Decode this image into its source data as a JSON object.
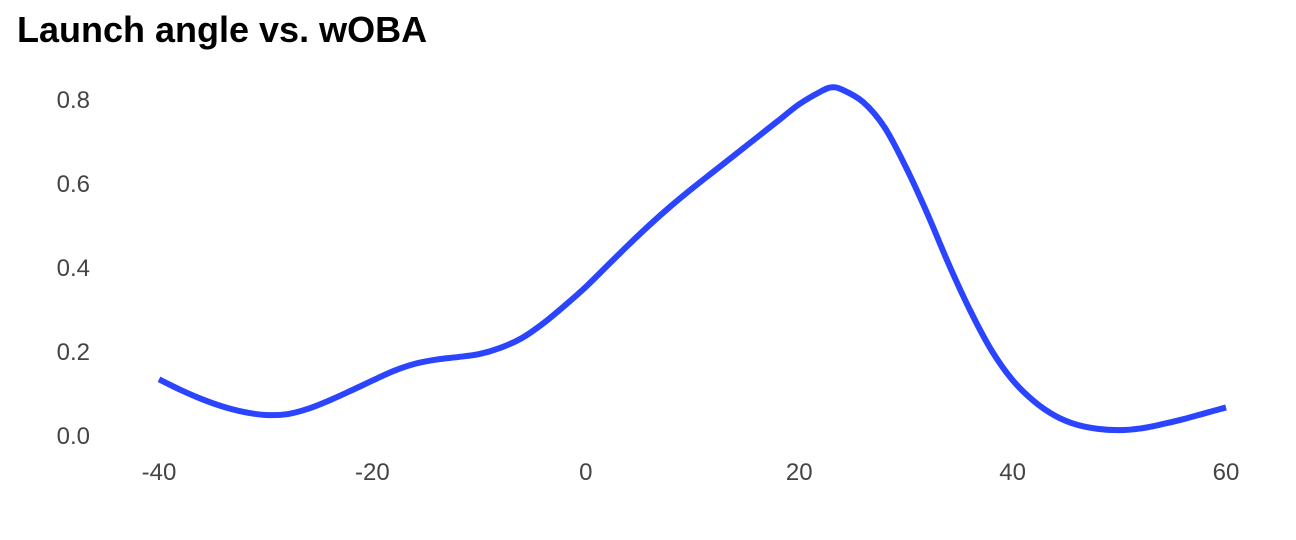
{
  "chart_data": {
    "type": "line",
    "title": "Launch angle vs. wOBA",
    "xlabel": "",
    "ylabel": "",
    "xlim": [
      -40,
      60
    ],
    "ylim": [
      0,
      0.8
    ],
    "x_ticks": [
      "-40",
      "-20",
      "0",
      "20",
      "40",
      "60"
    ],
    "y_ticks": [
      "0.0",
      "0.2",
      "0.4",
      "0.6",
      "0.8"
    ],
    "grid": false,
    "colors": {
      "line": "#2a44ff",
      "tick_text": "#444444",
      "title": "#000000"
    },
    "series": [
      {
        "x": [
          -40,
          -38,
          -36,
          -34,
          -32,
          -30,
          -28,
          -26,
          -24,
          -22,
          -20,
          -18,
          -16,
          -14,
          -12,
          -10,
          -8,
          -6,
          -4,
          -2,
          0,
          2,
          4,
          6,
          8,
          10,
          12,
          14,
          16,
          18,
          20,
          22,
          23,
          24,
          26,
          28,
          30,
          32,
          34,
          36,
          38,
          40,
          42,
          44,
          46,
          48,
          50,
          52,
          54,
          56,
          58,
          60
        ],
        "y": [
          0.135,
          0.11,
          0.088,
          0.07,
          0.057,
          0.05,
          0.052,
          0.065,
          0.085,
          0.108,
          0.132,
          0.155,
          0.172,
          0.182,
          0.188,
          0.195,
          0.21,
          0.233,
          0.268,
          0.31,
          0.355,
          0.405,
          0.455,
          0.503,
          0.548,
          0.59,
          0.63,
          0.67,
          0.71,
          0.75,
          0.79,
          0.82,
          0.83,
          0.825,
          0.795,
          0.735,
          0.64,
          0.53,
          0.41,
          0.3,
          0.205,
          0.133,
          0.083,
          0.048,
          0.027,
          0.017,
          0.014,
          0.018,
          0.028,
          0.04,
          0.054,
          0.068
        ]
      }
    ]
  }
}
